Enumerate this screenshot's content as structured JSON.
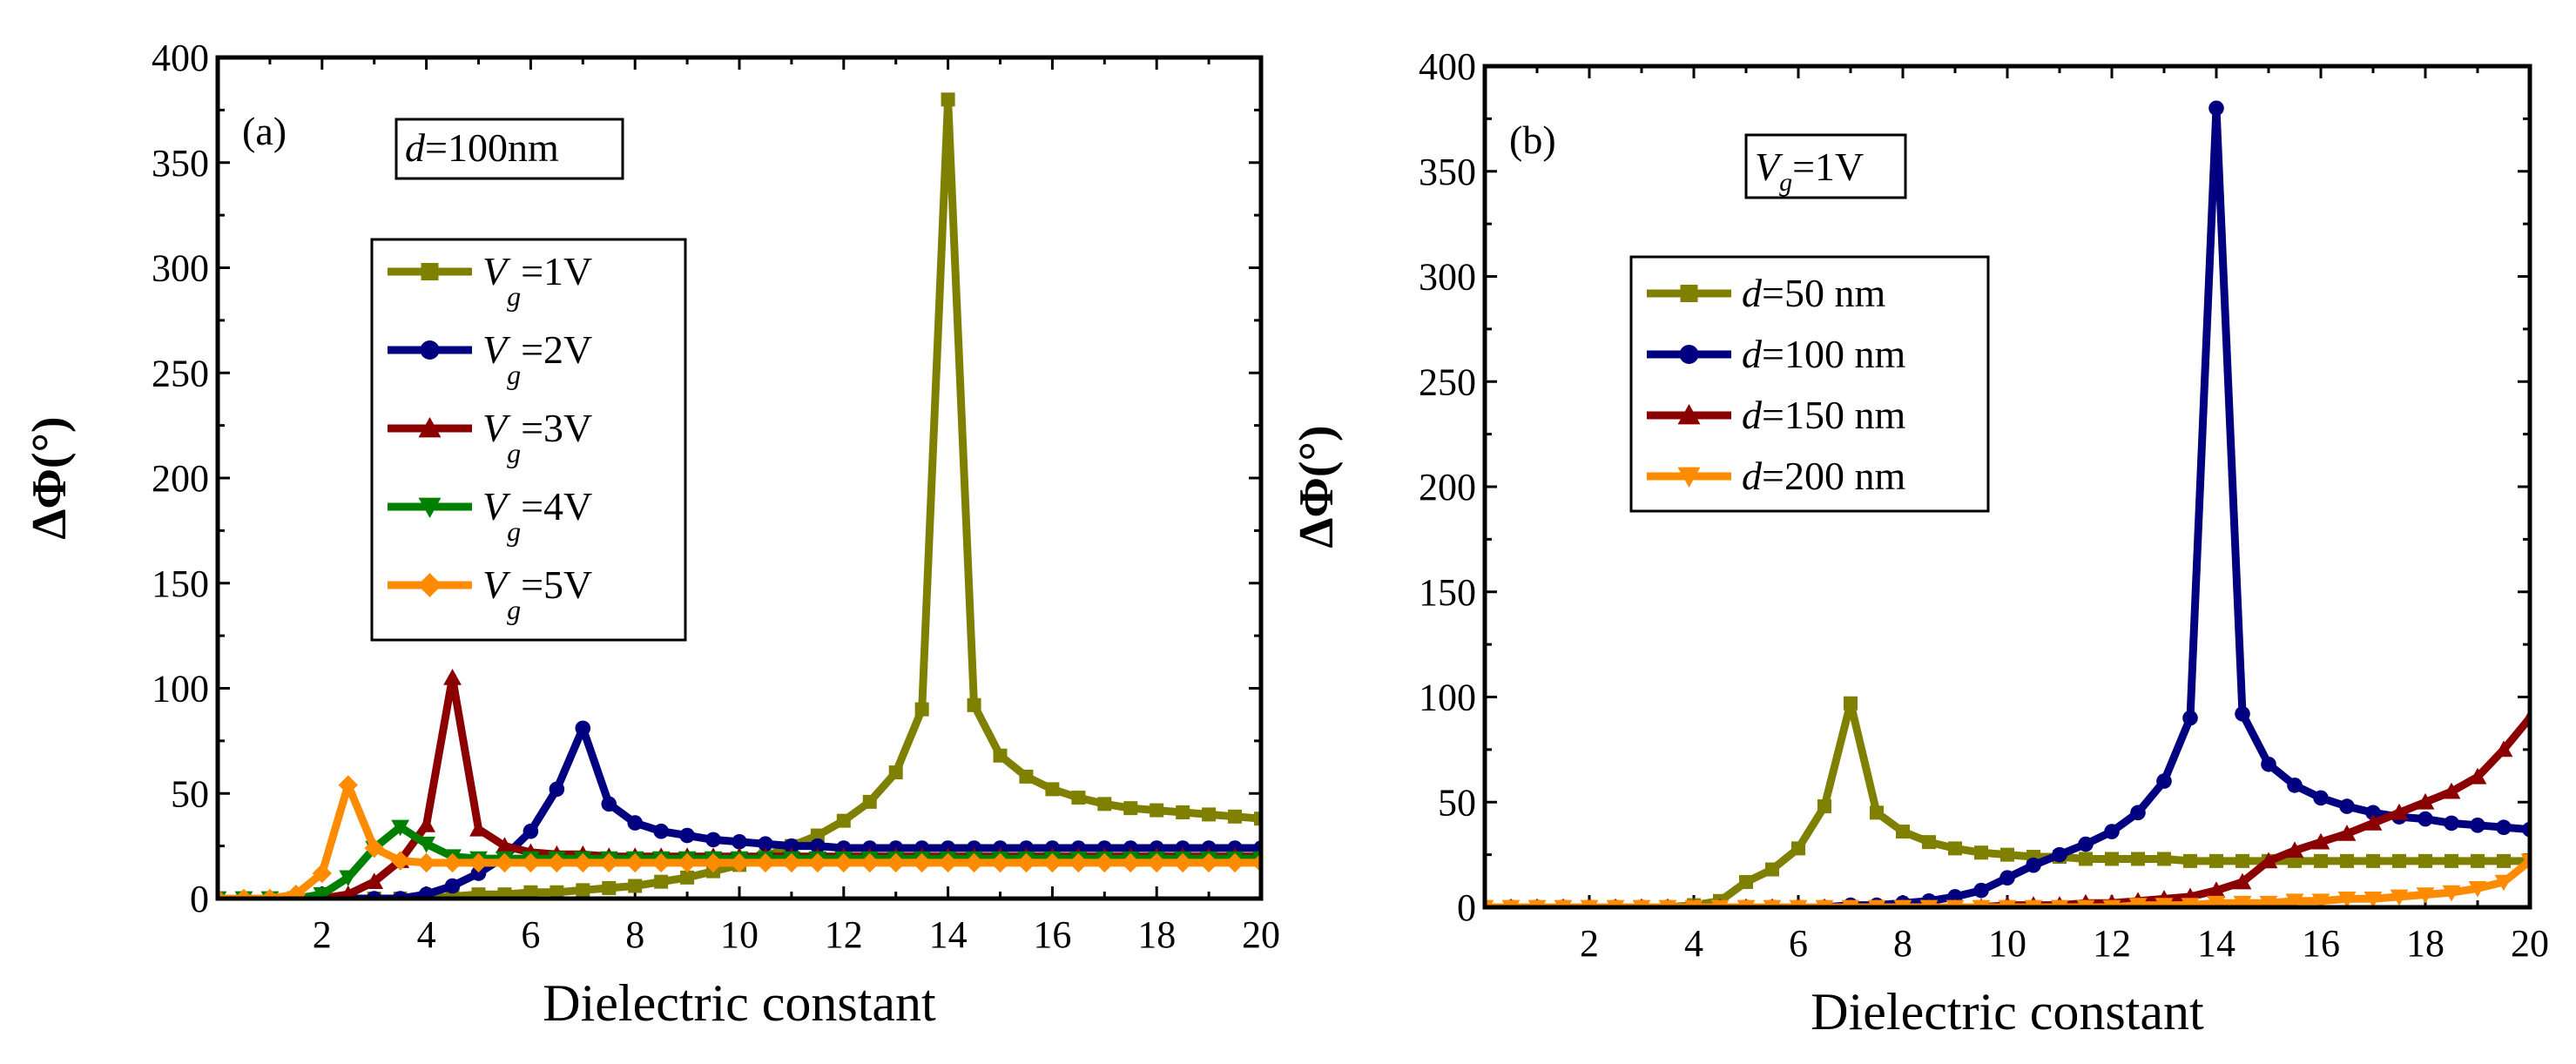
{
  "chart_data": [
    {
      "id": "a",
      "type": "line",
      "panel_label": "(a)",
      "xlabel": "Dielectric constant",
      "ylabel": "ΔΦ(°)",
      "xlim": [
        0,
        20
      ],
      "ylim": [
        0,
        400
      ],
      "xticks": [
        2,
        4,
        6,
        8,
        10,
        12,
        14,
        16,
        18,
        20
      ],
      "yticks": [
        0,
        50,
        100,
        150,
        200,
        250,
        300,
        350,
        400
      ],
      "annotation": {
        "italic": "d",
        "text": "=100nm"
      },
      "legend_position": "upper-left",
      "series": [
        {
          "name": "Vg=1V",
          "label_main": "V",
          "label_sub": "g",
          "label_rest": "=1V",
          "color": "#808000",
          "marker": "square",
          "x": [
            0,
            0.5,
            1,
            1.5,
            2,
            2.5,
            3,
            3.5,
            4,
            4.5,
            5,
            5.5,
            6,
            6.5,
            7,
            7.5,
            8,
            8.5,
            9,
            9.5,
            10,
            10.5,
            11,
            11.5,
            12,
            12.5,
            13,
            13.5,
            14,
            14.5,
            15,
            15.5,
            16,
            16.5,
            17,
            17.5,
            18,
            18.5,
            19,
            19.5,
            20
          ],
          "y": [
            0,
            0,
            0,
            0,
            0,
            0,
            0,
            0,
            0,
            1,
            2,
            2,
            3,
            3,
            4,
            5,
            6,
            8,
            10,
            13,
            16,
            20,
            25,
            30,
            37,
            46,
            60,
            90,
            380,
            92,
            68,
            58,
            52,
            48,
            45,
            43,
            42,
            41,
            40,
            39,
            38
          ]
        },
        {
          "name": "Vg=2V",
          "label_main": "V",
          "label_sub": "g",
          "label_rest": "=2V",
          "color": "#000080",
          "marker": "circle",
          "x": [
            0,
            0.5,
            1,
            1.5,
            2,
            2.5,
            3,
            3.5,
            4,
            4.5,
            5,
            5.5,
            6,
            6.5,
            7,
            7.5,
            8,
            8.5,
            9,
            9.5,
            10,
            10.5,
            11,
            11.5,
            12,
            12.5,
            13,
            13.5,
            14,
            14.5,
            15,
            15.5,
            16,
            16.5,
            17,
            17.5,
            18,
            18.5,
            19,
            19.5,
            20
          ],
          "y": [
            0,
            0,
            0,
            0,
            0,
            0,
            0,
            0,
            2,
            6,
            12,
            20,
            32,
            52,
            81,
            45,
            36,
            32,
            30,
            28,
            27,
            26,
            25,
            25,
            24,
            24,
            24,
            24,
            24,
            24,
            24,
            24,
            24,
            24,
            24,
            24,
            24,
            24,
            24,
            24,
            24
          ]
        },
        {
          "name": "Vg=3V",
          "label_main": "V",
          "label_sub": "g",
          "label_rest": "=3V",
          "color": "#8B0000",
          "marker": "triangle-up",
          "x": [
            0,
            0.5,
            1,
            1.5,
            2,
            2.5,
            3,
            3.5,
            4,
            4.5,
            5,
            5.5,
            6,
            6.5,
            7,
            7.5,
            8,
            8.5,
            9,
            9.5,
            10,
            10.5,
            11,
            11.5,
            12,
            12.5,
            13,
            13.5,
            14,
            14.5,
            15,
            15.5,
            16,
            16.5,
            17,
            17.5,
            18,
            18.5,
            19,
            19.5,
            20
          ],
          "y": [
            0,
            0,
            0,
            0,
            0,
            2,
            8,
            18,
            35,
            105,
            33,
            25,
            22,
            21,
            21,
            20,
            20,
            20,
            20,
            20,
            20,
            20,
            20,
            20,
            20,
            20,
            20,
            20,
            20,
            20,
            20,
            20,
            20,
            20,
            20,
            20,
            20,
            20,
            20,
            20,
            20
          ]
        },
        {
          "name": "Vg=4V",
          "label_main": "V",
          "label_sub": "g",
          "label_rest": "=4V",
          "color": "#008000",
          "marker": "triangle-down",
          "x": [
            0,
            0.5,
            1,
            1.5,
            2,
            2.5,
            3,
            3.5,
            4,
            4.5,
            5,
            5.5,
            6,
            6.5,
            7,
            7.5,
            8,
            8.5,
            9,
            9.5,
            10,
            10.5,
            11,
            11.5,
            12,
            12.5,
            13,
            13.5,
            14,
            14.5,
            15,
            15.5,
            16,
            16.5,
            17,
            17.5,
            18,
            18.5,
            19,
            19.5,
            20
          ],
          "y": [
            0,
            0,
            0,
            0,
            2,
            10,
            24,
            34,
            26,
            20,
            19,
            19,
            19,
            19,
            19,
            19,
            19,
            19,
            19,
            19,
            19,
            19,
            19,
            19,
            19,
            19,
            19,
            19,
            19,
            19,
            19,
            19,
            19,
            19,
            19,
            19,
            19,
            19,
            19,
            19,
            19
          ]
        },
        {
          "name": "Vg=5V",
          "label_main": "V",
          "label_sub": "g",
          "label_rest": "=5V",
          "color": "#FF8C00",
          "marker": "diamond",
          "x": [
            0,
            0.5,
            1,
            1.5,
            2,
            2.5,
            3,
            3.5,
            4,
            4.5,
            5,
            5.5,
            6,
            6.5,
            7,
            7.5,
            8,
            8.5,
            9,
            9.5,
            10,
            10.5,
            11,
            11.5,
            12,
            12.5,
            13,
            13.5,
            14,
            14.5,
            15,
            15.5,
            16,
            16.5,
            17,
            17.5,
            18,
            18.5,
            19,
            19.5,
            20
          ],
          "y": [
            0,
            0,
            0,
            2,
            12,
            54,
            24,
            18,
            17,
            17,
            17,
            17,
            17,
            17,
            17,
            17,
            17,
            17,
            17,
            17,
            17,
            17,
            17,
            17,
            17,
            17,
            17,
            17,
            17,
            17,
            17,
            17,
            17,
            17,
            17,
            17,
            17,
            17,
            17,
            17,
            17
          ]
        }
      ]
    },
    {
      "id": "b",
      "type": "line",
      "panel_label": "(b)",
      "xlabel": "Dielectric constant",
      "ylabel": "ΔΦ(°)",
      "xlim": [
        0,
        20
      ],
      "ylim": [
        0,
        400
      ],
      "xticks": [
        2,
        4,
        6,
        8,
        10,
        12,
        14,
        16,
        18,
        20
      ],
      "yticks": [
        0,
        50,
        100,
        150,
        200,
        250,
        300,
        350,
        400
      ],
      "annotation": {
        "italic": "V",
        "sub": "g",
        "text": "=1V"
      },
      "legend_position": "upper-left",
      "series": [
        {
          "name": "d=50 nm",
          "label_main": "d",
          "label_sub": "",
          "label_rest": "=50 nm",
          "color": "#808000",
          "marker": "square",
          "x": [
            0,
            0.5,
            1,
            1.5,
            2,
            2.5,
            3,
            3.5,
            4,
            4.5,
            5,
            5.5,
            6,
            6.5,
            7,
            7.5,
            8,
            8.5,
            9,
            9.5,
            10,
            10.5,
            11,
            11.5,
            12,
            12.5,
            13,
            13.5,
            14,
            14.5,
            15,
            15.5,
            16,
            16.5,
            17,
            17.5,
            18,
            18.5,
            19,
            19.5,
            20
          ],
          "y": [
            0,
            0,
            0,
            0,
            0,
            0,
            0,
            0,
            1,
            3,
            12,
            18,
            28,
            48,
            97,
            45,
            36,
            31,
            28,
            26,
            25,
            24,
            24,
            23,
            23,
            23,
            23,
            22,
            22,
            22,
            22,
            22,
            22,
            22,
            22,
            22,
            22,
            22,
            22,
            22,
            22
          ]
        },
        {
          "name": "d=100 nm",
          "label_main": "d",
          "label_sub": "",
          "label_rest": "=100 nm",
          "color": "#000080",
          "marker": "circle",
          "x": [
            0,
            0.5,
            1,
            1.5,
            2,
            2.5,
            3,
            3.5,
            4,
            4.5,
            5,
            5.5,
            6,
            6.5,
            7,
            7.5,
            8,
            8.5,
            9,
            9.5,
            10,
            10.5,
            11,
            11.5,
            12,
            12.5,
            13,
            13.5,
            14,
            14.5,
            15,
            15.5,
            16,
            16.5,
            17,
            17.5,
            18,
            18.5,
            19,
            19.5,
            20
          ],
          "y": [
            0,
            0,
            0,
            0,
            0,
            0,
            0,
            0,
            0,
            0,
            0,
            0,
            0,
            0,
            1,
            1,
            2,
            3,
            5,
            8,
            14,
            20,
            25,
            30,
            36,
            45,
            60,
            90,
            380,
            92,
            68,
            58,
            52,
            48,
            45,
            43,
            42,
            40,
            39,
            38,
            37
          ]
        },
        {
          "name": "d=150 nm",
          "label_main": "d",
          "label_sub": "",
          "label_rest": "=150 nm",
          "color": "#8B0000",
          "marker": "triangle-up",
          "x": [
            0,
            0.5,
            1,
            1.5,
            2,
            2.5,
            3,
            3.5,
            4,
            4.5,
            5,
            5.5,
            6,
            6.5,
            7,
            7.5,
            8,
            8.5,
            9,
            9.5,
            10,
            10.5,
            11,
            11.5,
            12,
            12.5,
            13,
            13.5,
            14,
            14.5,
            15,
            15.5,
            16,
            16.5,
            17,
            17.5,
            18,
            18.5,
            19,
            19.5,
            20
          ],
          "y": [
            0,
            0,
            0,
            0,
            0,
            0,
            0,
            0,
            0,
            0,
            0,
            0,
            0,
            0,
            0,
            0,
            0,
            0,
            0,
            0,
            1,
            1,
            1,
            2,
            2,
            3,
            4,
            5,
            8,
            12,
            22,
            27,
            31,
            35,
            40,
            45,
            50,
            55,
            62,
            75,
            90
          ]
        },
        {
          "name": "d=200 nm",
          "label_main": "d",
          "label_sub": "",
          "label_rest": "=200 nm",
          "color": "#FF8C00",
          "marker": "triangle-down",
          "x": [
            0,
            0.5,
            1,
            1.5,
            2,
            2.5,
            3,
            3.5,
            4,
            4.5,
            5,
            5.5,
            6,
            6.5,
            7,
            7.5,
            8,
            8.5,
            9,
            9.5,
            10,
            10.5,
            11,
            11.5,
            12,
            12.5,
            13,
            13.5,
            14,
            14.5,
            15,
            15.5,
            16,
            16.5,
            17,
            17.5,
            18,
            18.5,
            19,
            19.5,
            20
          ],
          "y": [
            0,
            0,
            0,
            0,
            0,
            0,
            0,
            0,
            0,
            0,
            0,
            0,
            0,
            0,
            0,
            0,
            0,
            0,
            0,
            0,
            0,
            0,
            0,
            0,
            0,
            1,
            1,
            1,
            2,
            2,
            2,
            3,
            3,
            4,
            4,
            5,
            6,
            7,
            9,
            12,
            22
          ]
        }
      ]
    }
  ]
}
